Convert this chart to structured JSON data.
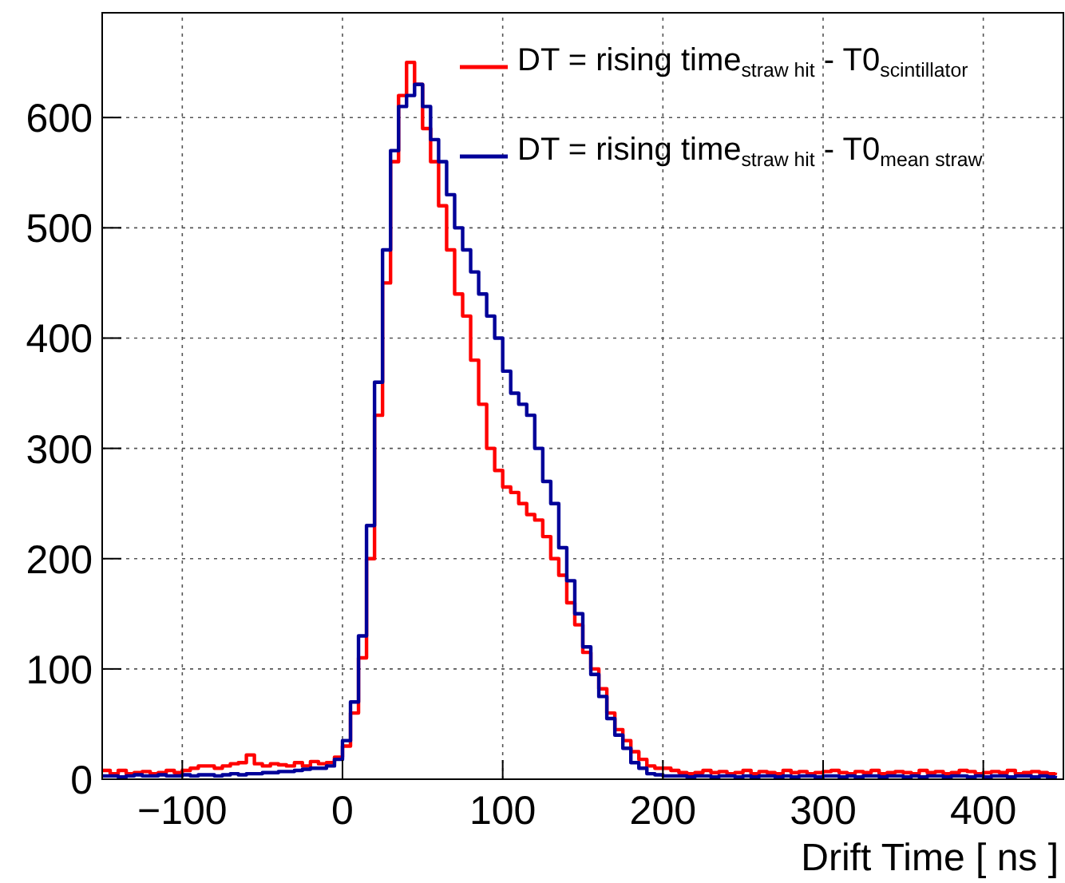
{
  "chart_data": {
    "type": "step",
    "xlabel": "Drift Time [ ns ]",
    "x": [
      -150,
      -145,
      -140,
      -135,
      -130,
      -125,
      -120,
      -115,
      -110,
      -105,
      -100,
      -95,
      -90,
      -85,
      -80,
      -75,
      -70,
      -65,
      -60,
      -55,
      -50,
      -45,
      -40,
      -35,
      -30,
      -25,
      -20,
      -15,
      -10,
      -5,
      0,
      5,
      10,
      15,
      20,
      25,
      30,
      35,
      40,
      45,
      50,
      55,
      60,
      65,
      70,
      75,
      80,
      85,
      90,
      95,
      100,
      105,
      110,
      115,
      120,
      125,
      130,
      135,
      140,
      145,
      150,
      155,
      160,
      165,
      170,
      175,
      180,
      185,
      190,
      195,
      200,
      205,
      210,
      215,
      220,
      225,
      230,
      235,
      240,
      245,
      250,
      255,
      260,
      265,
      270,
      275,
      280,
      285,
      290,
      295,
      300,
      305,
      310,
      315,
      320,
      325,
      330,
      335,
      340,
      345,
      350,
      355,
      360,
      365,
      370,
      375,
      380,
      385,
      390,
      395,
      400,
      405,
      410,
      415,
      420,
      425,
      430,
      435,
      440,
      445
    ],
    "series": [
      {
        "name": "DT = rising time$_{straw hit}$ - T0$_{scintillator}$",
        "color": "#ff0000",
        "values": [
          8,
          5,
          8,
          5,
          6,
          7,
          5,
          6,
          8,
          6,
          8,
          10,
          12,
          12,
          10,
          12,
          14,
          15,
          22,
          14,
          12,
          14,
          13,
          12,
          15,
          12,
          16,
          14,
          15,
          20,
          30,
          60,
          110,
          200,
          330,
          450,
          560,
          620,
          650,
          630,
          590,
          560,
          520,
          480,
          440,
          420,
          380,
          340,
          300,
          280,
          265,
          260,
          250,
          240,
          235,
          220,
          200,
          185,
          160,
          140,
          115,
          100,
          82,
          60,
          45,
          35,
          25,
          18,
          12,
          10,
          10,
          8,
          6,
          5,
          6,
          8,
          6,
          7,
          5,
          6,
          8,
          5,
          7,
          6,
          5,
          8,
          6,
          7,
          5,
          6,
          7,
          8,
          6,
          5,
          7,
          6,
          8,
          5,
          6,
          7,
          6,
          5,
          8,
          6,
          7,
          5,
          6,
          8,
          7,
          5,
          6,
          7,
          6,
          8,
          5,
          6,
          7,
          6,
          5,
          6
        ]
      },
      {
        "name": "DT = rising time$_{straw hit}$ - T0$_{mean straw}$",
        "color": "#000099",
        "values": [
          3,
          3,
          2,
          3,
          4,
          3,
          3,
          4,
          3,
          3,
          4,
          3,
          4,
          4,
          3,
          4,
          5,
          4,
          5,
          5,
          6,
          6,
          7,
          7,
          8,
          9,
          10,
          10,
          12,
          18,
          35,
          70,
          130,
          230,
          360,
          480,
          570,
          610,
          620,
          630,
          610,
          580,
          560,
          530,
          500,
          480,
          460,
          440,
          420,
          400,
          370,
          350,
          340,
          330,
          300,
          270,
          250,
          210,
          180,
          150,
          120,
          95,
          75,
          55,
          40,
          28,
          15,
          10,
          5,
          4,
          3,
          3,
          3,
          2,
          3,
          3,
          2,
          3,
          3,
          2,
          3,
          2,
          3,
          3,
          2,
          3,
          2,
          3,
          3,
          2,
          3,
          3,
          2,
          3,
          2,
          3,
          3,
          2,
          3,
          3,
          2,
          3,
          2,
          3,
          3,
          2,
          3,
          3,
          2,
          3,
          2,
          3,
          3,
          2,
          3,
          3,
          2,
          3,
          2,
          3
        ]
      }
    ],
    "xlim": [
      -150,
      450
    ],
    "xticks": [
      {
        "value": -100,
        "label": "−100"
      },
      0,
      100,
      200,
      300,
      400
    ],
    "ylim": [
      0,
      695
    ],
    "yticks": [
      0,
      100,
      200,
      300,
      400,
      500,
      600
    ],
    "grid": true,
    "legend": "top right",
    "line_style": "solid",
    "marker": "none"
  }
}
